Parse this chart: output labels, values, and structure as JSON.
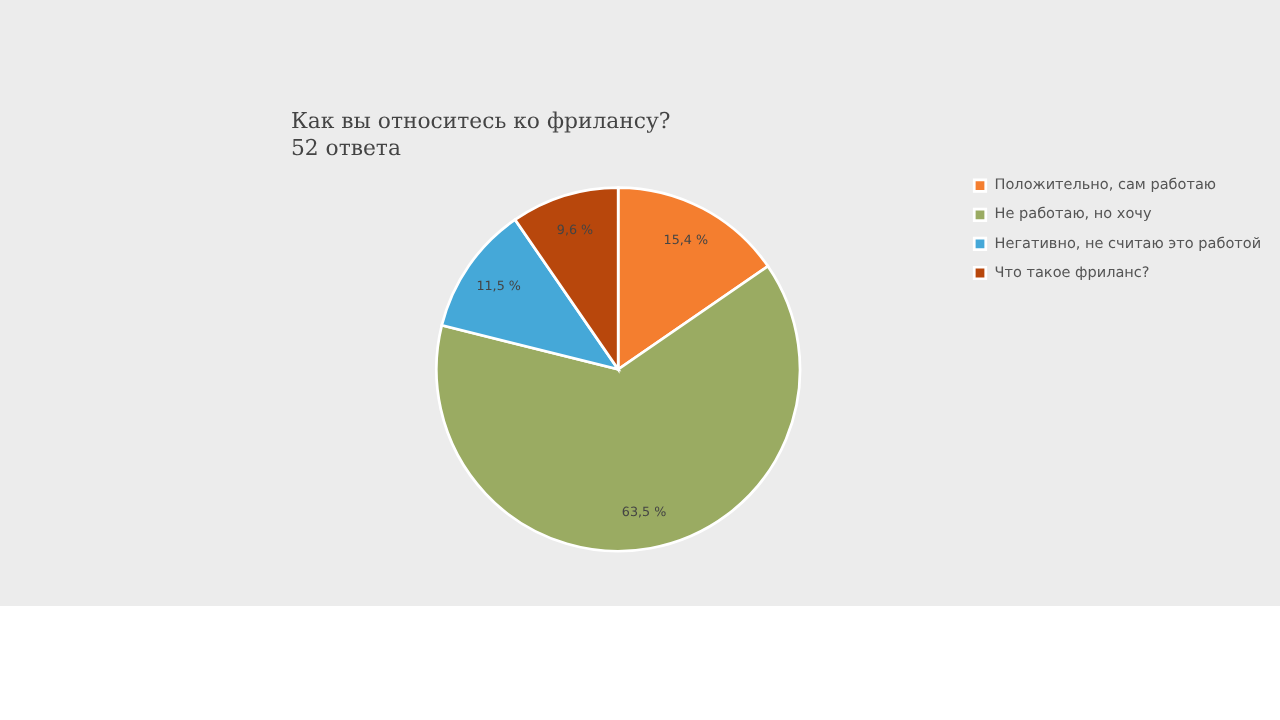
{
  "chart_data": {
    "type": "pie",
    "title": "Как вы относитесь ко фрилансу?",
    "subtitle": "52 ответа",
    "categories": [
      "Положительно, сам работаю",
      "Не работаю, но хочу",
      "Негативно, не считаю это работой",
      "Что такое фриланс?"
    ],
    "values": [
      15.4,
      63.5,
      11.5,
      9.6
    ],
    "colors": [
      "#f47e2f",
      "#9aab62",
      "#45a8d8",
      "#b8470c"
    ],
    "value_labels": [
      "15,4 %",
      "63,5 %",
      "11,5 %",
      "9,6 %"
    ],
    "legend": "right"
  }
}
